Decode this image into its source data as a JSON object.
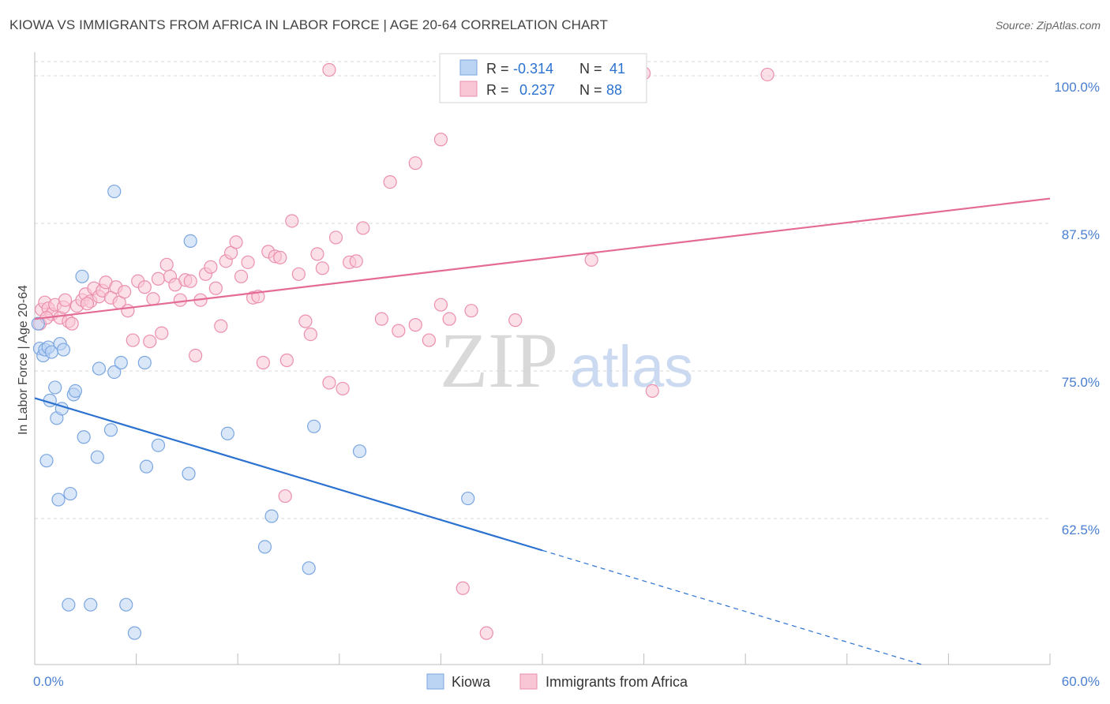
{
  "title": "KIOWA VS IMMIGRANTS FROM AFRICA IN LABOR FORCE | AGE 20-64 CORRELATION CHART",
  "source": "Source: ZipAtlas.com",
  "watermark": {
    "zip": "ZIP",
    "atlas": "atlas"
  },
  "colors": {
    "kiowa_fill": "#bcd4f4",
    "kiowa_stroke": "#7aa6e0",
    "kiowa_line": "#2b72d0",
    "africa_fill": "#f9c6d6",
    "africa_stroke": "#eb8fae",
    "africa_line": "#e36b95",
    "tick_label": "#4a7fd0",
    "grid": "#d8d8d8"
  },
  "legend": {
    "rows": [
      {
        "r_label": "R =",
        "r_value": "-0.314",
        "n_label": "N =",
        "n_value": "41"
      },
      {
        "r_label": "R =",
        "r_value": "0.237",
        "n_label": "N =",
        "n_value": "88"
      }
    ]
  },
  "bottom_legend": [
    "Kiowa",
    "Immigrants from Africa"
  ],
  "chart_data": {
    "type": "scatter",
    "title": "KIOWA VS IMMIGRANTS FROM AFRICA IN LABOR FORCE | AGE 20-64 CORRELATION CHART",
    "xlabel": "",
    "ylabel": "In Labor Force | Age 20-64",
    "xlim": [
      0,
      60
    ],
    "ylim": [
      52,
      101.5
    ],
    "x_tick_labels": [
      "0.0%",
      "60.0%"
    ],
    "y_ticks": [
      62.5,
      75.0,
      87.5,
      100.0
    ],
    "y_tick_labels": [
      "62.5%",
      "75.0%",
      "87.5%",
      "100.0%"
    ],
    "grid": true,
    "legend_placement": "top-center",
    "series": [
      {
        "name": "Kiowa",
        "r": -0.314,
        "n": 41,
        "trend": {
          "x0": 0,
          "y0": 72.7,
          "x1": 30,
          "y1": 59.8,
          "dash_to_x": 52.5,
          "dash_to_y": 50.1
        },
        "points": [
          [
            0.2,
            79.0
          ],
          [
            0.3,
            76.9
          ],
          [
            0.5,
            76.3
          ],
          [
            0.6,
            76.8
          ],
          [
            0.8,
            77.0
          ],
          [
            1.0,
            76.6
          ],
          [
            0.7,
            67.4
          ],
          [
            0.9,
            72.5
          ],
          [
            1.2,
            73.6
          ],
          [
            1.3,
            71.0
          ],
          [
            1.4,
            64.1
          ],
          [
            1.5,
            77.3
          ],
          [
            1.7,
            76.8
          ],
          [
            1.6,
            71.8
          ],
          [
            2.1,
            64.6
          ],
          [
            2.3,
            73.0
          ],
          [
            2.4,
            73.3
          ],
          [
            2.9,
            69.4
          ],
          [
            3.7,
            67.7
          ],
          [
            2.8,
            83.0
          ],
          [
            3.8,
            75.2
          ],
          [
            4.5,
            70.0
          ],
          [
            4.7,
            74.9
          ],
          [
            5.1,
            75.7
          ],
          [
            4.7,
            90.2
          ],
          [
            6.5,
            75.7
          ],
          [
            6.6,
            66.9
          ],
          [
            7.3,
            68.7
          ],
          [
            9.1,
            66.3
          ],
          [
            9.2,
            86.0
          ],
          [
            11.4,
            69.7
          ],
          [
            13.6,
            60.1
          ],
          [
            14.0,
            62.7
          ],
          [
            16.2,
            58.3
          ],
          [
            16.5,
            70.3
          ],
          [
            19.2,
            68.2
          ],
          [
            25.6,
            64.2
          ],
          [
            2.0,
            55.2
          ],
          [
            3.3,
            55.2
          ],
          [
            5.4,
            55.2
          ],
          [
            5.9,
            52.8
          ]
        ]
      },
      {
        "name": "Immigrants from Africa",
        "r": 0.237,
        "n": 88,
        "trend": {
          "x0": 0,
          "y0": 79.4,
          "x1": 60,
          "y1": 89.6
        },
        "points": [
          [
            0.3,
            79.0
          ],
          [
            0.4,
            80.2
          ],
          [
            0.6,
            80.8
          ],
          [
            0.8,
            80.3
          ],
          [
            1.0,
            79.8
          ],
          [
            1.2,
            80.6
          ],
          [
            1.5,
            79.5
          ],
          [
            1.7,
            80.4
          ],
          [
            2.0,
            79.2
          ],
          [
            2.2,
            79.0
          ],
          [
            2.5,
            80.5
          ],
          [
            2.8,
            81.0
          ],
          [
            3.0,
            81.5
          ],
          [
            3.3,
            80.9
          ],
          [
            3.5,
            82.0
          ],
          [
            3.8,
            81.3
          ],
          [
            4.0,
            81.8
          ],
          [
            4.2,
            82.5
          ],
          [
            4.5,
            81.2
          ],
          [
            4.8,
            82.1
          ],
          [
            5.0,
            80.8
          ],
          [
            5.3,
            81.7
          ],
          [
            5.5,
            80.1
          ],
          [
            5.8,
            77.6
          ],
          [
            6.1,
            82.6
          ],
          [
            6.5,
            82.1
          ],
          [
            6.8,
            77.5
          ],
          [
            7.0,
            81.1
          ],
          [
            7.3,
            82.8
          ],
          [
            7.5,
            78.2
          ],
          [
            7.8,
            84.0
          ],
          [
            8.0,
            83.0
          ],
          [
            8.3,
            82.3
          ],
          [
            8.6,
            81.0
          ],
          [
            8.9,
            82.7
          ],
          [
            9.2,
            82.6
          ],
          [
            9.5,
            76.3
          ],
          [
            9.8,
            81.0
          ],
          [
            10.1,
            83.2
          ],
          [
            10.4,
            83.8
          ],
          [
            10.7,
            82.0
          ],
          [
            11.0,
            78.8
          ],
          [
            11.3,
            84.3
          ],
          [
            11.6,
            85.0
          ],
          [
            11.9,
            85.9
          ],
          [
            12.2,
            83.0
          ],
          [
            12.6,
            84.2
          ],
          [
            12.9,
            81.2
          ],
          [
            13.2,
            81.3
          ],
          [
            13.5,
            75.7
          ],
          [
            13.8,
            85.1
          ],
          [
            14.2,
            84.7
          ],
          [
            14.5,
            84.6
          ],
          [
            14.9,
            75.9
          ],
          [
            15.2,
            87.7
          ],
          [
            15.6,
            83.2
          ],
          [
            16.0,
            79.2
          ],
          [
            16.3,
            78.1
          ],
          [
            16.7,
            84.9
          ],
          [
            17.0,
            83.7
          ],
          [
            17.4,
            74.0
          ],
          [
            17.8,
            86.3
          ],
          [
            18.2,
            73.5
          ],
          [
            18.6,
            84.2
          ],
          [
            19.0,
            84.3
          ],
          [
            19.4,
            87.1
          ],
          [
            20.5,
            79.4
          ],
          [
            21.0,
            91.0
          ],
          [
            21.5,
            78.4
          ],
          [
            22.5,
            78.9
          ],
          [
            23.3,
            77.6
          ],
          [
            24.0,
            80.6
          ],
          [
            24.5,
            79.4
          ],
          [
            25.8,
            80.1
          ],
          [
            28.4,
            79.3
          ],
          [
            24.0,
            94.6
          ],
          [
            22.5,
            92.6
          ],
          [
            17.4,
            100.5
          ],
          [
            32.9,
            84.4
          ],
          [
            36.5,
            73.3
          ],
          [
            43.3,
            100.1
          ],
          [
            25.3,
            56.6
          ],
          [
            26.7,
            52.8
          ],
          [
            14.8,
            64.4
          ],
          [
            36.0,
            100.2
          ],
          [
            0.7,
            79.5
          ],
          [
            1.8,
            81.0
          ],
          [
            3.1,
            80.7
          ]
        ]
      }
    ]
  }
}
